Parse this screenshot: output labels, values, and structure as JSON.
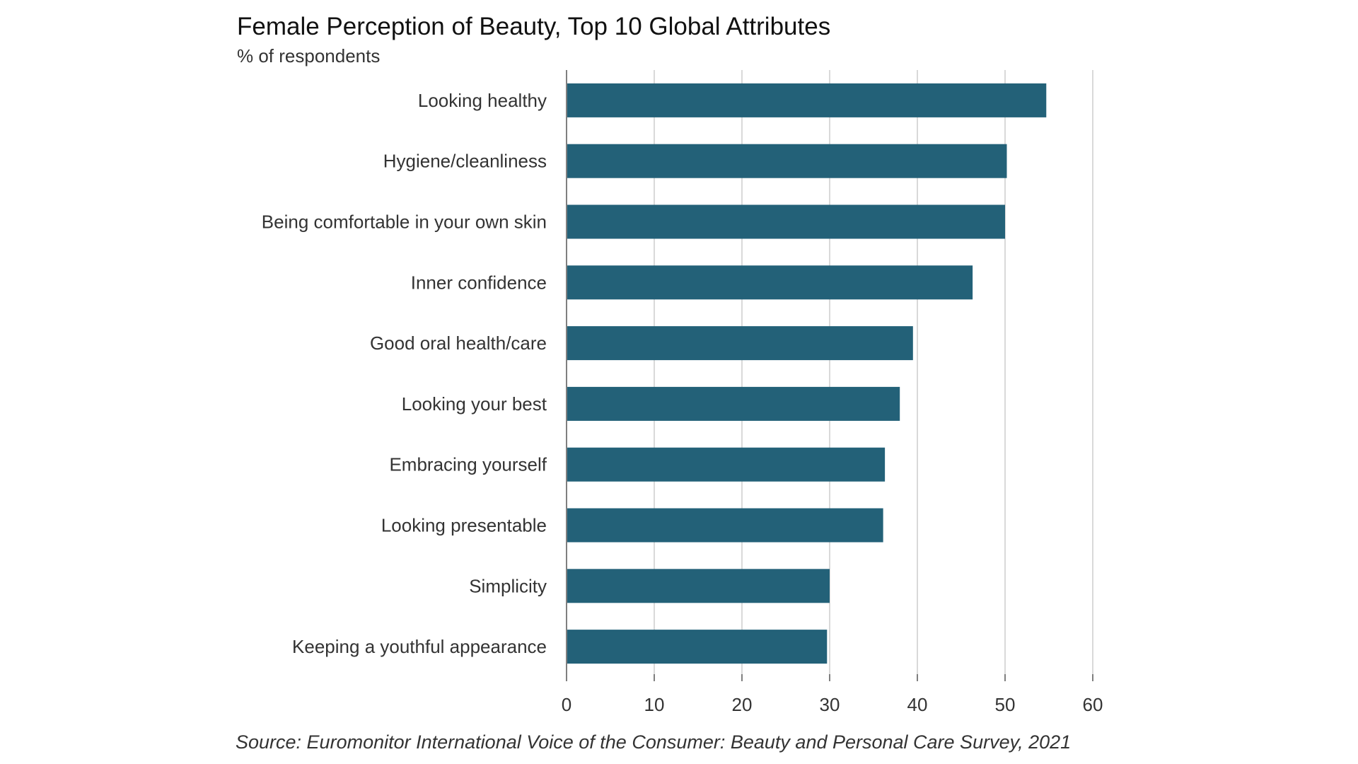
{
  "chart_data": {
    "type": "bar",
    "orientation": "horizontal",
    "title": "Female Perception of Beauty, Top 10 Global Attributes",
    "subtitle": "% of respondents",
    "categories": [
      "Looking healthy",
      "Hygiene/cleanliness",
      "Being comfortable in your own skin",
      "Inner confidence",
      "Good oral health/care",
      "Looking your best",
      "Embracing yourself",
      "Looking presentable",
      "Simplicity",
      "Keeping a youthful appearance"
    ],
    "values": [
      54.7,
      50.2,
      50.0,
      46.3,
      39.5,
      38.0,
      36.3,
      36.1,
      30.0,
      29.7
    ],
    "xlim": [
      0,
      60
    ],
    "xticks": [
      0,
      10,
      20,
      30,
      40,
      50,
      60
    ],
    "grid": "vertical",
    "bar_color": "#236178",
    "source": "Source: Euromonitor International Voice of the Consumer: Beauty and Personal Care Survey, 2021"
  }
}
